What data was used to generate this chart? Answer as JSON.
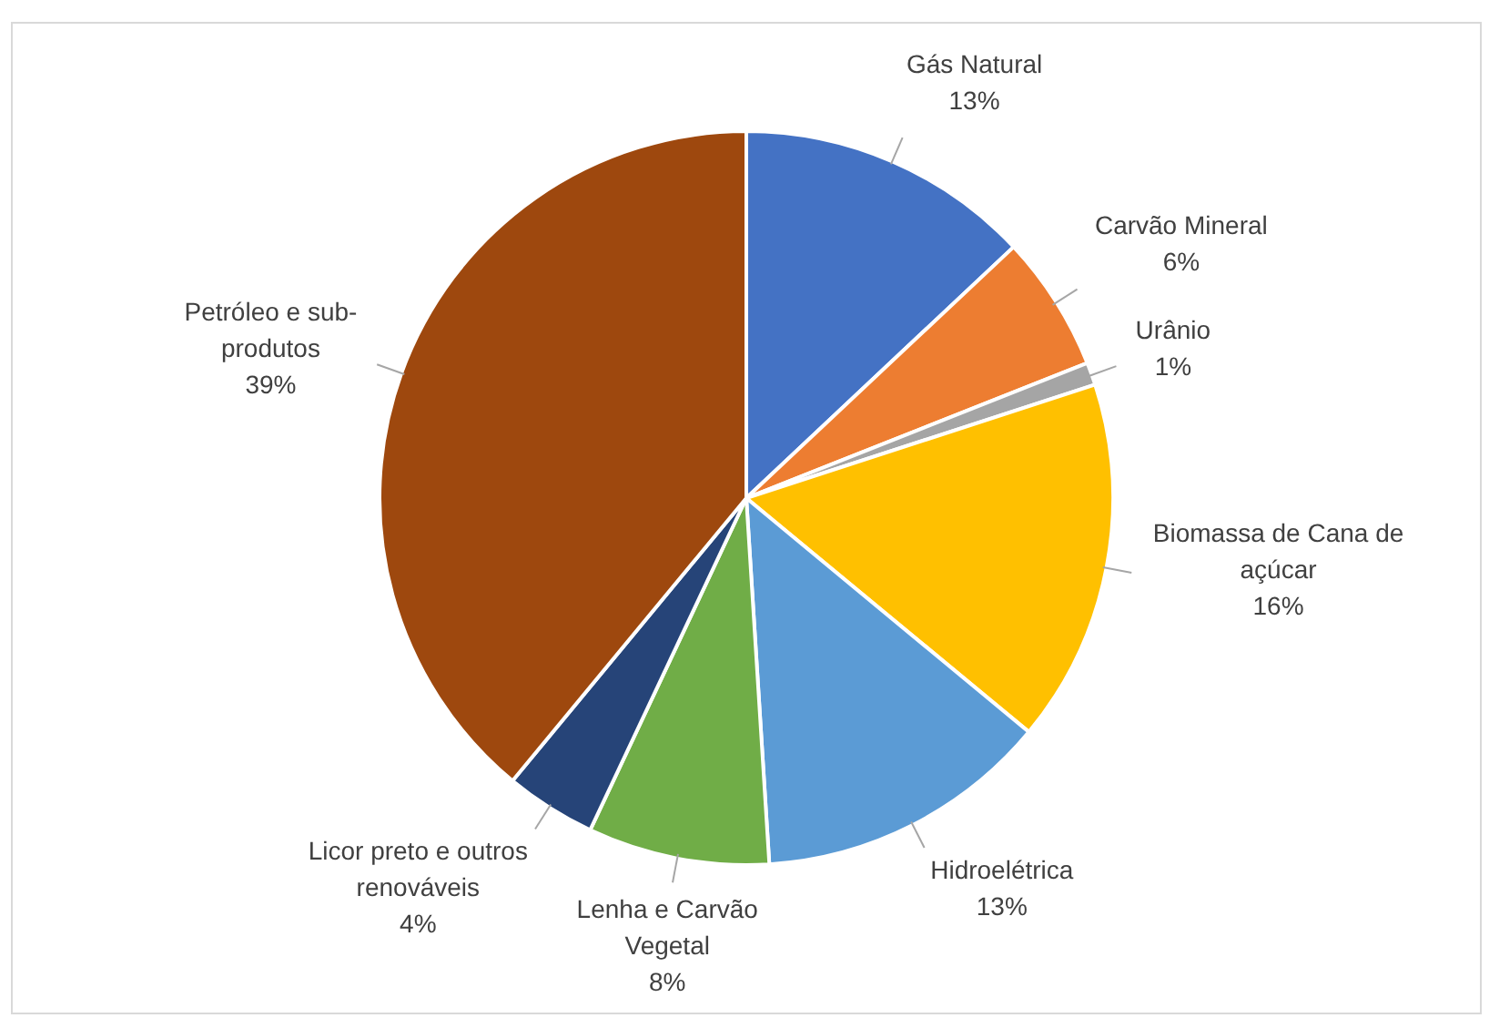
{
  "chart_data": {
    "type": "pie",
    "categories": [
      "Gás Natural",
      "Carvão Mineral",
      "Urânio",
      "Biomassa de Cana de açúcar",
      "Hidroelétrica",
      "Lenha e Carvão Vegetal",
      "Licor preto e outros renováveis",
      "Petróleo e sub-produtos"
    ],
    "values": [
      13,
      6,
      1,
      16,
      13,
      8,
      4,
      39
    ],
    "colors": [
      "#4472c4",
      "#ed7d31",
      "#a5a5a5",
      "#ffc000",
      "#5b9bd5",
      "#70ad47",
      "#264478",
      "#9e480e"
    ],
    "value_labels": [
      "13%",
      "6%",
      "1%",
      "16%",
      "13%",
      "8%",
      "4%",
      "39%"
    ],
    "legend": false
  }
}
